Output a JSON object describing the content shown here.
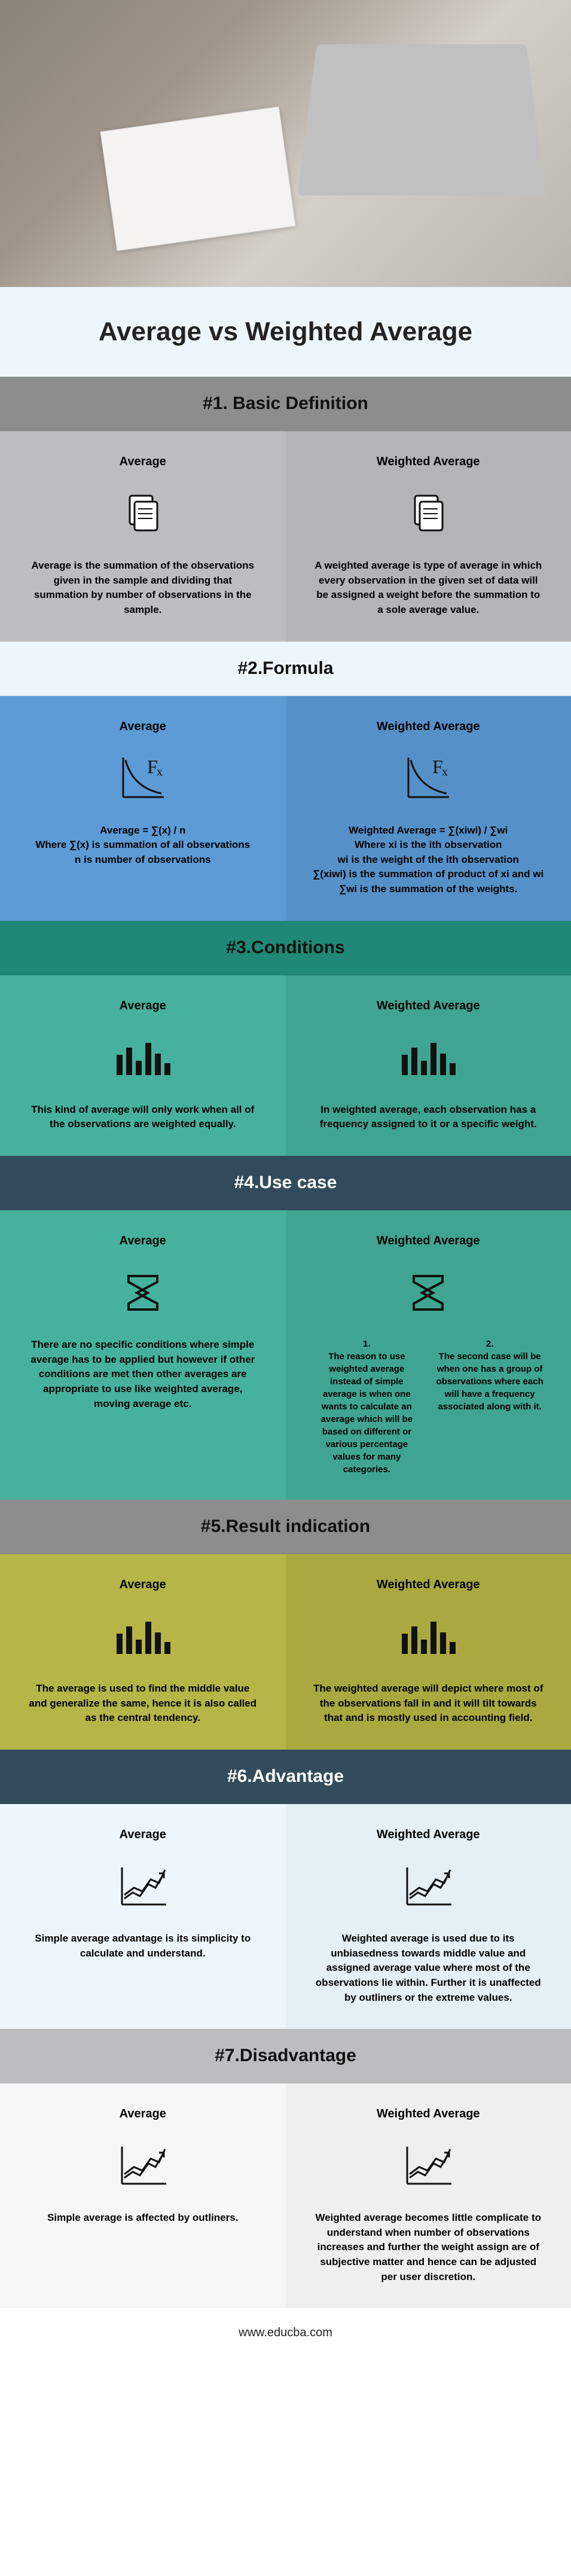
{
  "title": "Average vs Weighted Average",
  "footer": "www.educba.com",
  "left_label": "Average",
  "right_label": "Weighted Average",
  "sections": [
    {
      "id": 1,
      "header": "#1. Basic Definition",
      "header_bg": "#8d8d8d",
      "left_bg": "#bcbdbf",
      "right_bg": "#b3b4b6",
      "icon": "docs",
      "left_body": "Average is the summation of the observations given in the sample and dividing that summation by number of observations in the sample.",
      "right_body": "A weighted average is type of average in which every observation in the given set of data will be assigned a weight before the summation to a sole average value."
    },
    {
      "id": 2,
      "header": "#2.Formula",
      "header_bg": "#edf6fc",
      "left_bg": "#5c9bd5",
      "right_bg": "#5591c8",
      "icon": "fx",
      "left_body": "Average = ∑(x) / n\nWhere ∑(x) is summation of all observations\nn is number of observations",
      "right_body": "Weighted Average = ∑(xiwi) / ∑wi\nWhere xi is the ith observation\nwi is the weight of the ith observation\n∑(xiwi) is the summation of product of xi and wi ∑wi is the summation of the weights."
    },
    {
      "id": 3,
      "header": "#3.Conditions",
      "header_bg": "#1f8876",
      "left_bg": "#46b29d",
      "right_bg": "#3fa591",
      "icon": "bars",
      "left_body": "This kind of average will only work when all of the observations are weighted equally.",
      "right_body": "In weighted average, each observation has a frequency assigned to it or a specific weight."
    },
    {
      "id": 4,
      "header": "#4.Use case",
      "header_bg": "#324b5a",
      "left_bg": "#46b29d",
      "right_bg": "#3fa591",
      "icon": "sigma",
      "left_body": "There are no specific conditions where simple average has to be applied but however if other conditions are met then other averages are appropriate to use like weighted average, moving average etc.",
      "right_sub_1": "1.\nThe reason to use weighted average instead of simple average is when one wants to calculate an average which will be based on different or various percentage values for many categories.",
      "right_sub_2": "2.\nThe second case will be when one has a group of observations where each will have a frequency associated along with it."
    },
    {
      "id": 5,
      "header": "#5.Result indication",
      "header_bg": "#8d8d8d",
      "left_bg": "#b6b547",
      "right_bg": "#aaa93f",
      "icon": "bars",
      "left_body": "The average is used to find the middle value and generalize the same, hence it is also called as the central tendency.",
      "right_body": "The weighted average will depict where most of the observations fall in and it will tilt towards that and is mostly used in accounting field."
    },
    {
      "id": 6,
      "header": "#6.Advantage",
      "header_bg": "#334c5b",
      "left_bg": "#edf6fc",
      "right_bg": "#e4eff6",
      "icon": "trend",
      "left_body": "Simple average advantage is its simplicity to calculate and understand.",
      "right_body": "Weighted average is used due to its unbiasedness towards middle value and assigned average value where most of the observations lie within. Further it is unaffected by outliners or the extreme values."
    },
    {
      "id": 7,
      "header": "#7.Disadvantage",
      "header_bg": "#bcbdbf",
      "left_bg": "#f6f6f6",
      "right_bg": "#efefef",
      "icon": "trend",
      "left_body": "Simple average is affected by outliners.",
      "right_body": "Weighted average becomes little complicate to understand when number of observations increases and further the weight assign are of subjective matter and hence can be adjusted per user discretion."
    }
  ]
}
